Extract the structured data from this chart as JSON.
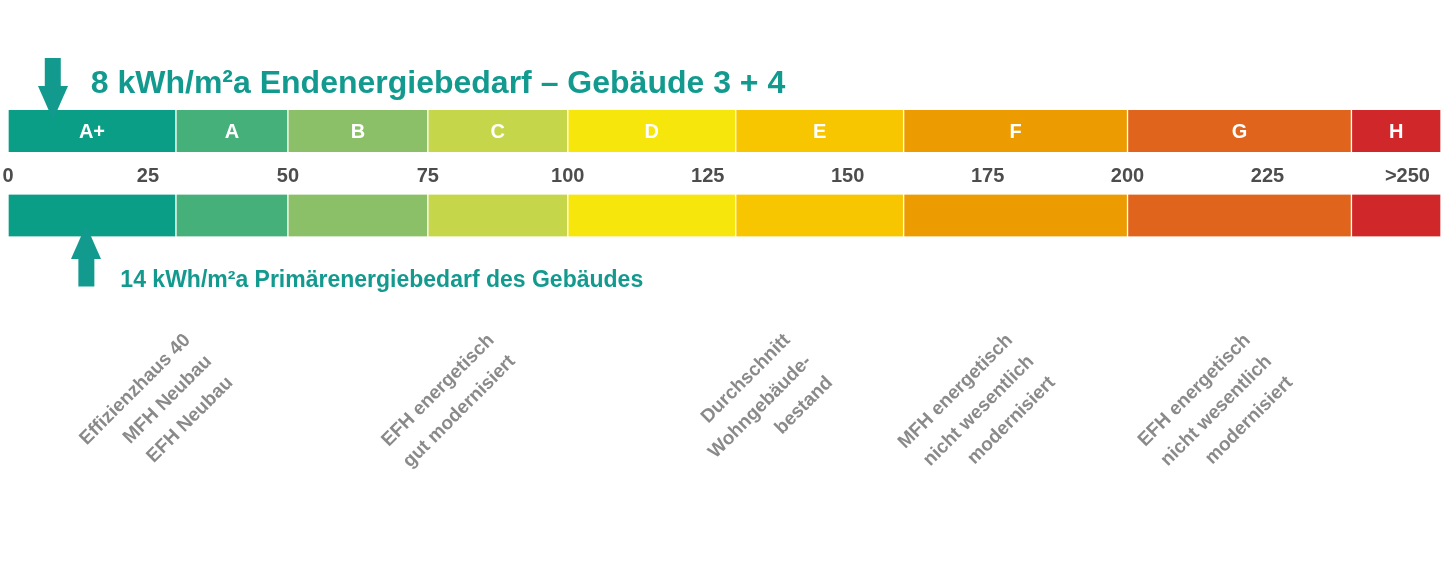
{
  "chart_data": {
    "type": "bar",
    "orientation": "horizontal",
    "stacked": true,
    "categories": [
      null,
      null
    ],
    "series": [
      {
        "name": "A+",
        "color": "#0a9e86",
        "values": [
          30,
          30
        ]
      },
      {
        "name": "A",
        "color": "#45b07a",
        "values": [
          20,
          20
        ]
      },
      {
        "name": "B",
        "color": "#8cc068",
        "values": [
          25,
          25
        ]
      },
      {
        "name": "C",
        "color": "#c6d64a",
        "values": [
          25,
          25
        ]
      },
      {
        "name": "D",
        "color": "#f6e60c",
        "values": [
          30,
          30
        ]
      },
      {
        "name": "E",
        "color": "#f7c600",
        "values": [
          30,
          30
        ]
      },
      {
        "name": "F",
        "color": "#ec9c00",
        "values": [
          40,
          40
        ]
      },
      {
        "name": "G",
        "color": "#e0641c",
        "values": [
          40,
          40
        ]
      },
      {
        "name": "H",
        "color": "#d0282a",
        "values": [
          16,
          16
        ]
      }
    ],
    "xlim": [
      0,
      256
    ],
    "xticks": [
      0,
      25,
      50,
      75,
      100,
      125,
      150,
      175,
      200,
      225,
      {
        "value": 250,
        "label": ">250"
      }
    ],
    "ref_lines": [
      {
        "axis": "x",
        "value": 8,
        "label": "8 kWh/m²a Endenergiebedarf – Gebäude 3 + 4",
        "color": "#139a8f"
      },
      {
        "axis": "x",
        "value": 14,
        "label": "14 kWh/m²a Primärenergiebedarf des Gebäudes",
        "color": "#139a8f"
      }
    ],
    "annotations": [
      "Effizienzhaus 40\nMFH Neubau\nEFH Neubau",
      "EFH energetisch\ngut modernisiert",
      "Durchschnitt\nWohngebäude-\nbestand",
      "MFH energetisch\nnicht wesentlich\nmodernisiert",
      "EFH energetisch\nnicht wesentlich\nmodernisiert"
    ]
  }
}
